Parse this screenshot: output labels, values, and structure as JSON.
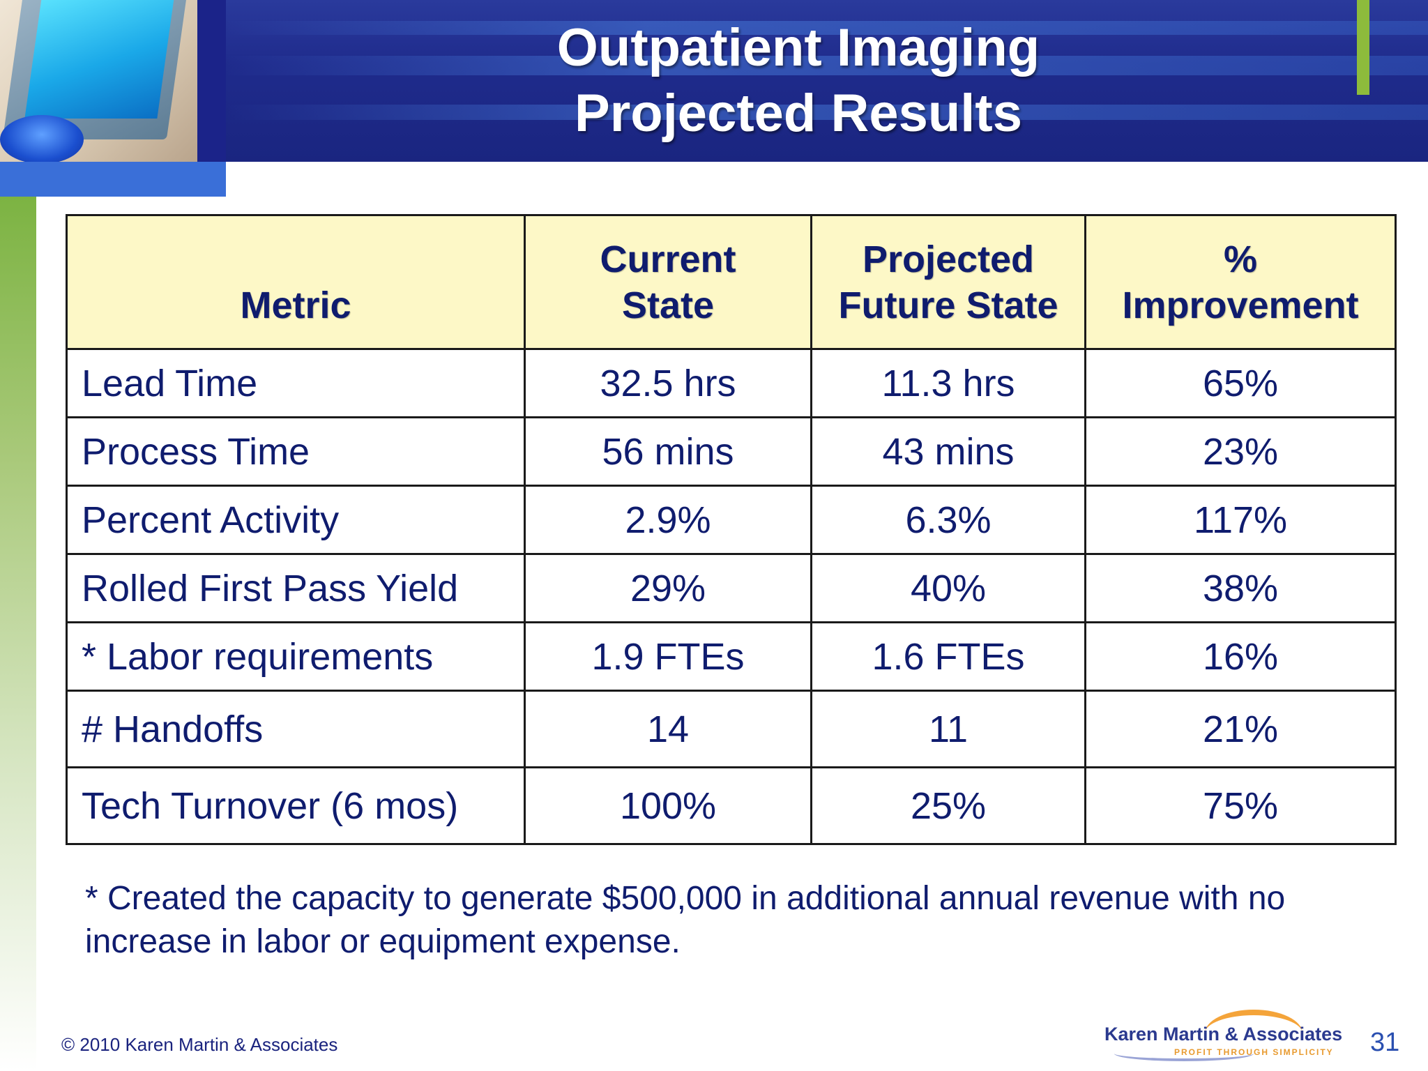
{
  "slide": {
    "title_line1": "Outpatient Imaging",
    "title_line2": "Projected Results",
    "page_number": "31",
    "copyright": "© 2010 Karen Martin & Associates",
    "logo": {
      "name": "Karen Martin & Associates",
      "tagline": "PROFIT THROUGH SIMPLICITY"
    },
    "colors": {
      "header": "#1f2b8c",
      "accent_green": "#8dbb3c",
      "table_header_bg": "#fdf8c7",
      "text": "#0f1c6e"
    }
  },
  "table": {
    "headers": {
      "metric": "Metric",
      "current_line1": "Current",
      "current_line2": "State",
      "projected_line1": "Projected",
      "projected_line2": "Future State",
      "improvement_line1": "%",
      "improvement_line2": "Improvement"
    },
    "rows": [
      {
        "metric": "Lead Time",
        "current": "32.5 hrs",
        "projected": "11.3 hrs",
        "improvement": "65%"
      },
      {
        "metric": "Process Time",
        "current": "56 mins",
        "projected": "43 mins",
        "improvement": "23%"
      },
      {
        "metric": "Percent Activity",
        "current": "2.9%",
        "projected": "6.3%",
        "improvement": "117%"
      },
      {
        "metric": "Rolled First Pass Yield",
        "current": "29%",
        "projected": "40%",
        "improvement": "38%"
      },
      {
        "metric": "* Labor requirements",
        "current": "1.9 FTEs",
        "projected": "1.6 FTEs",
        "improvement": "16%"
      },
      {
        "metric": "# Handoffs",
        "current": "14",
        "projected": "11",
        "improvement": "21%"
      },
      {
        "metric": "Tech Turnover (6 mos)",
        "current": "100%",
        "projected": "25%",
        "improvement": "75%"
      }
    ]
  },
  "footnote": "* Created the capacity to generate $500,000 in additional annual revenue with no increase in labor or equipment expense."
}
